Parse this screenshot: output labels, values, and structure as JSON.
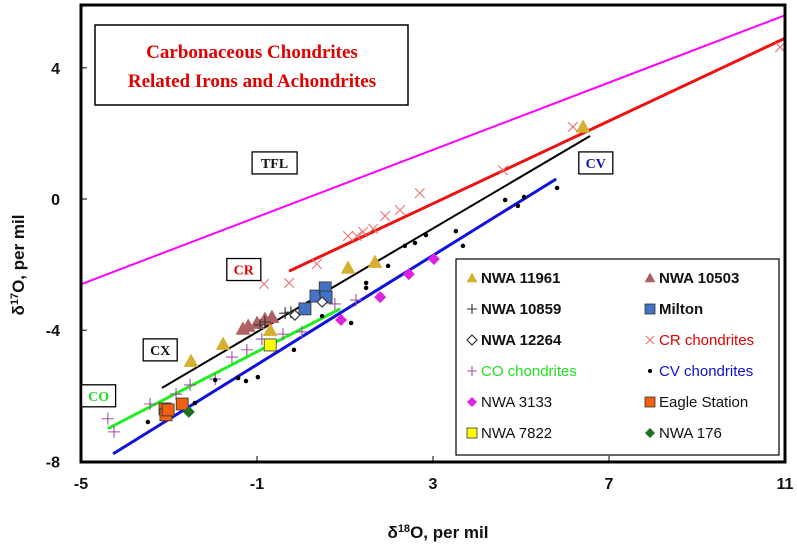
{
  "chart_data": {
    "type": "scatter",
    "title": [
      "Carbonaceous Chondrites",
      "Related Irons and Achondrites"
    ],
    "xlabel": {
      "prefix": "δ",
      "sup": "18",
      "suffix": "O, per mil"
    },
    "ylabel": {
      "prefix": "δ",
      "sup": "17",
      "suffix": "O, per mil"
    },
    "xlim": [
      -5,
      11
    ],
    "ylim": [
      -8,
      5.9
    ],
    "xticks": [
      -5,
      -1,
      3,
      7,
      11
    ],
    "yticks": [
      -8,
      -4,
      0,
      4
    ],
    "grid": false,
    "legend_position": "bottom-right",
    "lines": [
      {
        "name": "TFL",
        "color": "#ff00ff",
        "x": [
          -5,
          11
        ],
        "y": [
          -2.6,
          5.6
        ],
        "label": "TFL",
        "label_color": "#111111",
        "label_at": [
          -0.6,
          1.1
        ]
      },
      {
        "name": "CR",
        "color": "#ee1111",
        "x": [
          -0.27,
          11
        ],
        "y": [
          -2.2,
          4.9
        ],
        "label": "CR",
        "label_color": "#e00000",
        "label_at": [
          -1.3,
          -2.15
        ]
      },
      {
        "name": "CX",
        "color": "#000000",
        "x": [
          -3.16,
          6.57
        ],
        "y": [
          -5.76,
          1.92
        ],
        "label": "CX",
        "label_color": "#111111",
        "label_at": [
          -3.2,
          -4.6
        ]
      },
      {
        "name": "CO",
        "color": "#22ee22",
        "x": [
          -4.39,
          0.89
        ],
        "y": [
          -7.0,
          -3.35
        ],
        "label": "CO",
        "label_color": "#22dd22",
        "label_at": [
          -4.6,
          -6.0
        ]
      },
      {
        "name": "CV",
        "color": "#1111dd",
        "x": [
          -4.27,
          5.8
        ],
        "y": [
          -7.77,
          0.61
        ],
        "label": "CV",
        "label_color": "#1111aa",
        "label_at": [
          6.7,
          1.1
        ]
      }
    ],
    "series": [
      {
        "name": "NWA 11961",
        "marker": "triangle",
        "color": "#d4b030",
        "bold": true,
        "x": [
          -2.5,
          -1.77,
          -0.7,
          1.07,
          1.68,
          6.41
        ],
        "y": [
          -4.94,
          -4.42,
          -4.0,
          -2.1,
          -1.92,
          2.2
        ]
      },
      {
        "name": "NWA 10503",
        "marker": "triangle",
        "color": "#b06060",
        "bold": true,
        "x": [
          -1.32,
          -1.2,
          -1.0,
          -0.82,
          -0.66
        ],
        "y": [
          -3.96,
          -3.87,
          -3.78,
          -3.66,
          -3.6
        ]
      },
      {
        "name": "NWA 10859",
        "marker": "plus",
        "color": "#333333",
        "bold": true,
        "x": [
          -0.93,
          -0.82,
          -0.36,
          -0.23
        ],
        "y": [
          -3.84,
          -3.75,
          -3.48,
          -3.45
        ]
      },
      {
        "name": "Milton",
        "marker": "square",
        "color": "#4472c4",
        "bold": true,
        "x": [
          0.09,
          0.34,
          0.55,
          0.57
        ],
        "y": [
          -3.35,
          -2.96,
          -2.71,
          -2.99
        ]
      },
      {
        "name": "NWA 12264",
        "marker": "diamond-open",
        "color": "#333333",
        "bold": true,
        "x": [
          -0.14,
          0.48
        ],
        "y": [
          -3.54,
          -3.14
        ]
      },
      {
        "name": "CR chondrites",
        "marker": "x",
        "color": "#e87070",
        "text_color": "#e00000",
        "x": [
          -0.84,
          -0.27,
          0.36,
          1.07,
          1.27,
          1.41,
          1.64,
          1.91,
          2.25,
          2.7,
          4.59,
          6.18,
          10.89
        ],
        "y": [
          -2.59,
          -2.56,
          -1.98,
          -1.13,
          -1.13,
          -1.0,
          -0.91,
          -0.52,
          -0.34,
          0.18,
          0.88,
          2.2,
          4.63
        ]
      },
      {
        "name": "CO chondrites",
        "marker": "plus",
        "color": "#a050a0",
        "text_color": "#22dd22",
        "x": [
          -4.39,
          -4.25,
          -3.43,
          -2.84,
          -2.52,
          -1.95,
          -1.57,
          -1.23,
          -0.89,
          -0.41,
          0.02,
          0.77,
          1.25
        ],
        "y": [
          -6.7,
          -7.1,
          -6.25,
          -5.95,
          -5.67,
          -5.49,
          -4.82,
          -4.6,
          -4.27,
          -4.12,
          -4.05,
          -3.2,
          -3.08
        ]
      },
      {
        "name": "CV chondrites",
        "marker": "dot",
        "color": "#000000",
        "text_color": "#1111cc",
        "x": [
          -3.48,
          -2.41,
          -1.95,
          -1.43,
          -1.25,
          -0.98,
          -0.77,
          -0.16,
          0.48,
          1.14,
          1.48,
          1.48,
          1.98,
          2.36,
          2.59,
          2.84,
          3.52,
          3.68,
          4.64,
          4.93,
          5.07,
          5.82
        ],
        "y": [
          -6.8,
          -6.22,
          -5.52,
          -5.46,
          -5.55,
          -5.43,
          -4.48,
          -4.6,
          -3.57,
          -3.78,
          -2.71,
          -2.56,
          -2.04,
          -1.43,
          -1.34,
          -1.1,
          -0.98,
          -1.43,
          -0.03,
          -0.21,
          0.06,
          0.34
        ]
      },
      {
        "name": "NWA 3133",
        "marker": "diamond",
        "color": "#e020e0",
        "x": [
          0.91,
          1.8,
          2.45,
          3.02
        ],
        "y": [
          -3.69,
          -2.99,
          -2.29,
          -1.83
        ]
      },
      {
        "name": "Eagle Station",
        "marker": "square",
        "color": "#f06010",
        "x": [
          -3.09,
          -3.07,
          -3.02,
          -2.7
        ],
        "y": [
          -6.4,
          -6.58,
          -6.43,
          -6.25
        ]
      },
      {
        "name": "NWA 7822",
        "marker": "square",
        "color": "#ffff00",
        "x": [
          -0.7
        ],
        "y": [
          -4.45
        ]
      },
      {
        "name": "NWA 176",
        "marker": "diamond",
        "color": "#207020",
        "x": [
          -2.55
        ],
        "y": [
          -6.49
        ]
      }
    ]
  }
}
